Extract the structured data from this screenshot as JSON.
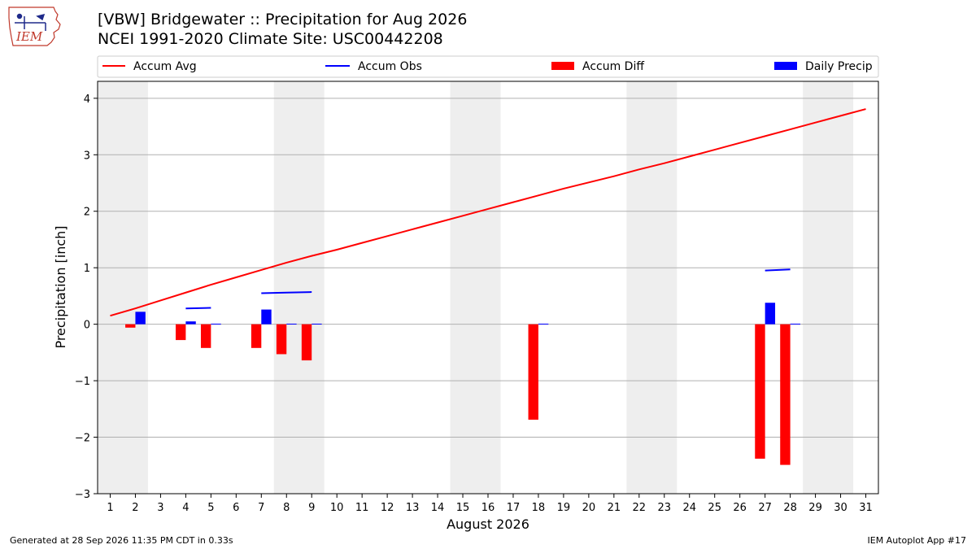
{
  "header": {
    "title_line1": "[VBW] Bridgewater :: Precipitation for Aug 2026",
    "title_line2": "NCEI 1991-2020 Climate Site: USC00442208",
    "logo_text": "IEM"
  },
  "footer": {
    "left": "Generated at 28 Sep 2026 11:35 PM CDT in 0.33s",
    "right": "IEM Autoplot App #17"
  },
  "colors": {
    "accum_avg": "#ff0000",
    "accum_obs": "#0000ff",
    "accum_diff": "#ff0000",
    "daily_precip": "#0000ff",
    "weekend_shade": "#eeeeee",
    "grid": "#b0b0b0"
  },
  "chart_data": {
    "type": "bar",
    "xlabel": "August 2026",
    "ylabel": "Precipitation [inch]",
    "ylim": [
      -3,
      4.3
    ],
    "xlim": [
      0.5,
      31.5
    ],
    "x_ticks": [
      1,
      2,
      3,
      4,
      5,
      6,
      7,
      8,
      9,
      10,
      11,
      12,
      13,
      14,
      15,
      16,
      17,
      18,
      19,
      20,
      21,
      22,
      23,
      24,
      25,
      26,
      27,
      28,
      29,
      30,
      31
    ],
    "y_ticks": [
      -3,
      -2,
      -1,
      0,
      1,
      2,
      3,
      4
    ],
    "y_tick_labels": [
      "−3",
      "−2",
      "−1",
      "0",
      "1",
      "2",
      "3",
      "4"
    ],
    "grid": "horizontal",
    "legend_placement": "top, above plot",
    "weekend_shaded_days": [
      [
        1,
        2
      ],
      [
        8,
        9
      ],
      [
        15,
        16
      ],
      [
        22,
        23
      ],
      [
        29,
        30
      ]
    ],
    "series": [
      {
        "name": "Accum Avg",
        "kind": "line",
        "days": [
          1,
          2,
          3,
          4,
          5,
          6,
          7,
          8,
          9,
          10,
          11,
          12,
          13,
          14,
          15,
          16,
          17,
          18,
          19,
          20,
          21,
          22,
          23,
          24,
          25,
          26,
          27,
          28,
          29,
          30,
          31
        ],
        "values": [
          0.15,
          0.28,
          0.42,
          0.56,
          0.7,
          0.83,
          0.96,
          1.09,
          1.21,
          1.32,
          1.44,
          1.56,
          1.68,
          1.8,
          1.92,
          2.04,
          2.16,
          2.28,
          2.4,
          2.51,
          2.62,
          2.74,
          2.85,
          2.97,
          3.09,
          3.21,
          3.33,
          3.45,
          3.57,
          3.69,
          3.81
        ]
      },
      {
        "name": "Accum Obs",
        "kind": "line_segments",
        "segments": [
          {
            "days": [
              4,
              5
            ],
            "values": [
              0.28,
              0.29
            ]
          },
          {
            "days": [
              7,
              8,
              9
            ],
            "values": [
              0.55,
              0.56,
              0.57
            ]
          },
          {
            "days": [
              27,
              28
            ],
            "values": [
              0.95,
              0.97
            ]
          }
        ]
      },
      {
        "name": "Accum Diff",
        "kind": "bar",
        "days": [
          2,
          4,
          5,
          7,
          8,
          9,
          18,
          27,
          28
        ],
        "values": [
          -0.06,
          -0.28,
          -0.42,
          -0.42,
          -0.53,
          -0.64,
          -1.69,
          -2.38,
          -2.49
        ]
      },
      {
        "name": "Daily Precip",
        "kind": "bar",
        "days": [
          2,
          4,
          5,
          7,
          8,
          9,
          18,
          27,
          28
        ],
        "values": [
          0.22,
          0.05,
          0.01,
          0.26,
          0.01,
          0.01,
          0.01,
          0.38,
          0.01
        ]
      }
    ]
  }
}
